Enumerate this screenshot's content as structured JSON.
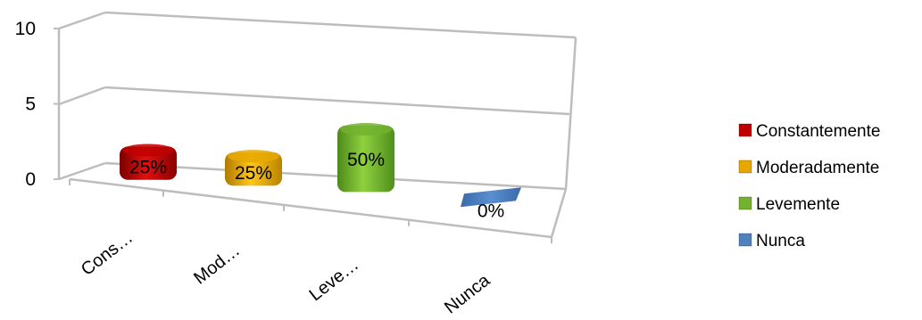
{
  "chart_data": {
    "type": "bar",
    "categories": [
      "Cons…",
      "Mod…",
      "Leve…",
      "Nunca"
    ],
    "values": [
      2,
      2,
      4,
      0
    ],
    "data_labels": [
      "25%",
      "25%",
      "50%",
      "0%"
    ],
    "yticks": [
      "0",
      "5",
      "10"
    ],
    "ylim": [
      0,
      10
    ],
    "grid": true,
    "legend_position": "right",
    "legend": [
      {
        "name": "Constantemente",
        "color": "#c00000"
      },
      {
        "name": "Moderadamente",
        "color": "#e6a800"
      },
      {
        "name": "Levemente",
        "color": "#72b22e"
      },
      {
        "name": "Nunca",
        "color": "#4f81bd"
      }
    ],
    "colors": [
      "#c00000",
      "#e6a800",
      "#72b22e",
      "#4f81bd"
    ]
  }
}
